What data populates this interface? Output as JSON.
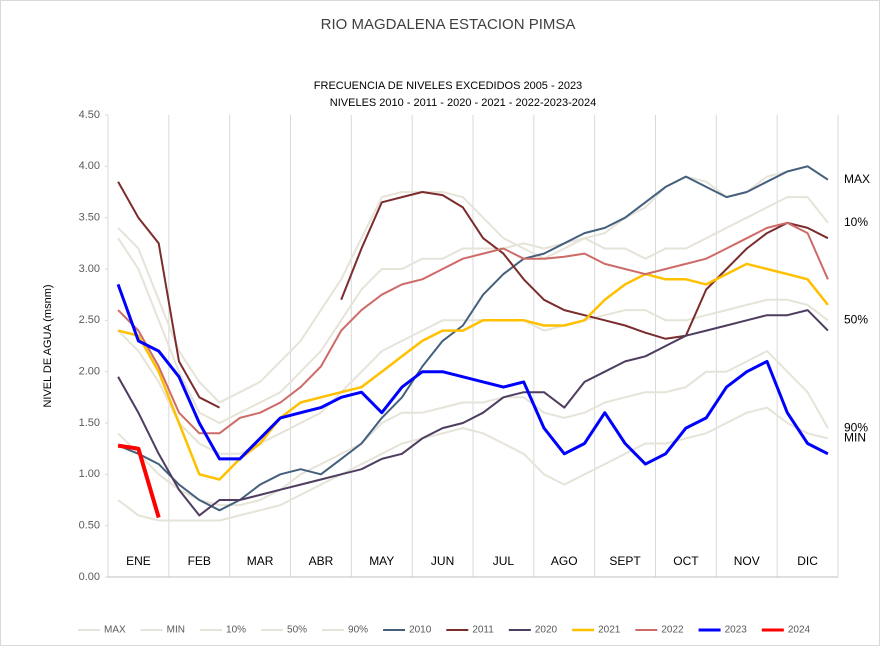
{
  "chart_data": {
    "type": "line",
    "title": "RIO MAGDALENA ESTACION PIMSA",
    "subtitle": [
      "FRECUENCIA DE NIVELES EXCEDIDOS 2005 - 2023",
      "NIVELES 2010 - 2011 - 2020 - 2021 - 2022-2023-2024"
    ],
    "y_label": "NIVEL DE AGUA (msnm)",
    "categories": [
      null,
      "ENE",
      null,
      null,
      "FEB",
      null,
      null,
      "MAR",
      null,
      null,
      "ABR",
      null,
      null,
      "MAY",
      null,
      null,
      "JUN",
      null,
      null,
      "JUL",
      null,
      null,
      "AGO",
      null,
      null,
      "SEPT",
      null,
      null,
      "OCT",
      null,
      null,
      "NOV",
      null,
      null,
      "DIC",
      null
    ],
    "ylim": [
      0,
      4.5
    ],
    "yticks": [
      {
        "value": 0,
        "label": "0.00"
      },
      {
        "value": 0.5,
        "label": "0.50"
      },
      {
        "value": 1,
        "label": "1.00"
      },
      {
        "value": 1.5,
        "label": "1.50"
      },
      {
        "value": 2,
        "label": "2.00"
      },
      {
        "value": 2.5,
        "label": "2.50"
      },
      {
        "value": 3,
        "label": "3.00"
      },
      {
        "value": 3.5,
        "label": "3.50"
      },
      {
        "value": 4,
        "label": "4.00"
      },
      {
        "value": 4.5,
        "label": "4.50"
      }
    ],
    "grid": false,
    "legend": "bottom",
    "end_labels": [
      0,
      2,
      3,
      4,
      1
    ],
    "series": [
      {
        "name": "MAX",
        "color": "#e6e3d8",
        "width": 2,
        "values": [
          3.4,
          3.2,
          2.7,
          2.2,
          1.9,
          1.7,
          1.8,
          1.9,
          2.1,
          2.3,
          2.6,
          2.9,
          3.3,
          3.7,
          3.75,
          3.75,
          3.75,
          3.7,
          3.5,
          3.3,
          3.2,
          3.1,
          3.2,
          3.3,
          3.35,
          3.5,
          3.6,
          3.8,
          3.9,
          3.85,
          3.7,
          3.75,
          3.9,
          3.95,
          4.0,
          3.87
        ]
      },
      {
        "name": "MIN",
        "color": "#e6e3d8",
        "width": 2,
        "values": [
          0.75,
          0.6,
          0.55,
          0.55,
          0.55,
          0.55,
          0.6,
          0.65,
          0.7,
          0.8,
          0.9,
          1.0,
          1.1,
          1.2,
          1.3,
          1.35,
          1.4,
          1.45,
          1.4,
          1.3,
          1.2,
          1.0,
          0.9,
          1.0,
          1.1,
          1.2,
          1.3,
          1.3,
          1.35,
          1.4,
          1.5,
          1.6,
          1.65,
          1.5,
          1.4,
          1.35
        ]
      },
      {
        "name": "10%",
        "color": "#e6e3d8",
        "width": 2,
        "values": [
          3.3,
          3.0,
          2.5,
          2.0,
          1.6,
          1.5,
          1.6,
          1.7,
          1.8,
          2.0,
          2.2,
          2.5,
          2.8,
          3.0,
          3.0,
          3.1,
          3.1,
          3.2,
          3.2,
          3.2,
          3.25,
          3.2,
          3.25,
          3.3,
          3.2,
          3.2,
          3.1,
          3.2,
          3.2,
          3.3,
          3.4,
          3.5,
          3.6,
          3.7,
          3.7,
          3.45
        ]
      },
      {
        "name": "50%",
        "color": "#e6e3d8",
        "width": 2,
        "values": [
          2.4,
          2.2,
          1.9,
          1.5,
          1.3,
          1.2,
          1.2,
          1.3,
          1.4,
          1.5,
          1.6,
          1.8,
          2.0,
          2.2,
          2.3,
          2.4,
          2.5,
          2.5,
          2.5,
          2.5,
          2.5,
          2.4,
          2.45,
          2.5,
          2.55,
          2.6,
          2.6,
          2.5,
          2.5,
          2.55,
          2.6,
          2.65,
          2.7,
          2.7,
          2.65,
          2.5
        ]
      },
      {
        "name": "90%",
        "color": "#e6e3d8",
        "width": 2,
        "values": [
          1.4,
          1.2,
          1.0,
          0.85,
          0.75,
          0.7,
          0.7,
          0.75,
          0.85,
          1.0,
          1.1,
          1.2,
          1.3,
          1.5,
          1.6,
          1.6,
          1.65,
          1.7,
          1.7,
          1.75,
          1.75,
          1.6,
          1.55,
          1.6,
          1.7,
          1.75,
          1.8,
          1.8,
          1.85,
          2.0,
          2.0,
          2.1,
          2.2,
          2.0,
          1.8,
          1.45
        ]
      },
      {
        "name": "2010",
        "color": "#44607d",
        "width": 2,
        "values": [
          1.28,
          1.2,
          1.1,
          0.9,
          0.75,
          0.65,
          0.75,
          0.9,
          1.0,
          1.05,
          1.0,
          1.15,
          1.3,
          1.55,
          1.75,
          2.05,
          2.3,
          2.45,
          2.75,
          2.95,
          3.1,
          3.15,
          3.25,
          3.35,
          3.4,
          3.5,
          3.65,
          3.8,
          3.9,
          3.8,
          3.7,
          3.75,
          3.85,
          3.95,
          4.0,
          3.87
        ]
      },
      {
        "name": "2011",
        "color": "#7b2c2c",
        "width": 2,
        "values": [
          3.85,
          3.5,
          3.25,
          2.1,
          1.75,
          1.65,
          null,
          null,
          null,
          null,
          null,
          2.7,
          3.2,
          3.65,
          3.7,
          3.75,
          3.72,
          3.6,
          3.3,
          3.15,
          2.9,
          2.7,
          2.6,
          2.55,
          2.5,
          2.45,
          2.38,
          2.32,
          2.35,
          2.8,
          3.0,
          3.2,
          3.35,
          3.45,
          3.4,
          3.3
        ]
      },
      {
        "name": "2020",
        "color": "#4e3d60",
        "width": 2,
        "values": [
          1.95,
          1.6,
          1.2,
          0.85,
          0.6,
          0.75,
          0.75,
          0.8,
          0.85,
          0.9,
          0.95,
          1.0,
          1.05,
          1.15,
          1.2,
          1.35,
          1.45,
          1.5,
          1.6,
          1.75,
          1.8,
          1.8,
          1.65,
          1.9,
          2.0,
          2.1,
          2.15,
          2.25,
          2.35,
          2.4,
          2.45,
          2.5,
          2.55,
          2.55,
          2.6,
          2.4
        ]
      },
      {
        "name": "2021",
        "color": "#ffc000",
        "width": 2.5,
        "values": [
          2.4,
          2.35,
          2.0,
          1.5,
          1.0,
          0.95,
          1.15,
          1.3,
          1.55,
          1.7,
          1.75,
          1.8,
          1.85,
          2.0,
          2.15,
          2.3,
          2.4,
          2.4,
          2.5,
          2.5,
          2.5,
          2.45,
          2.45,
          2.5,
          2.7,
          2.85,
          2.95,
          2.9,
          2.9,
          2.85,
          2.95,
          3.05,
          3.0,
          2.95,
          2.9,
          2.65
        ]
      },
      {
        "name": "2022",
        "color": "#cd6b68",
        "width": 2,
        "values": [
          2.6,
          2.4,
          2.05,
          1.6,
          1.4,
          1.4,
          1.55,
          1.6,
          1.7,
          1.85,
          2.05,
          2.4,
          2.6,
          2.75,
          2.85,
          2.9,
          3.0,
          3.1,
          3.15,
          3.2,
          3.1,
          3.1,
          3.12,
          3.15,
          3.05,
          3.0,
          2.95,
          3.0,
          3.05,
          3.1,
          3.2,
          3.3,
          3.4,
          3.45,
          3.35,
          2.9
        ]
      },
      {
        "name": "2023",
        "color": "#0000ff",
        "width": 3,
        "values": [
          2.85,
          2.3,
          2.2,
          1.95,
          1.5,
          1.15,
          1.15,
          1.35,
          1.55,
          1.6,
          1.65,
          1.75,
          1.8,
          1.6,
          1.85,
          2.0,
          2.0,
          1.95,
          1.9,
          1.85,
          1.9,
          1.45,
          1.2,
          1.3,
          1.6,
          1.3,
          1.1,
          1.2,
          1.45,
          1.55,
          1.85,
          2.0,
          2.1,
          1.6,
          1.3,
          1.2
        ]
      },
      {
        "name": "2024",
        "color": "#ff0000",
        "width": 4,
        "values": [
          1.28,
          1.25,
          0.58,
          null,
          null,
          null,
          null,
          null,
          null,
          null,
          null,
          null,
          null,
          null,
          null,
          null,
          null,
          null,
          null,
          null,
          null,
          null,
          null,
          null,
          null,
          null,
          null,
          null,
          null,
          null,
          null,
          null,
          null,
          null,
          null,
          null
        ]
      }
    ]
  }
}
